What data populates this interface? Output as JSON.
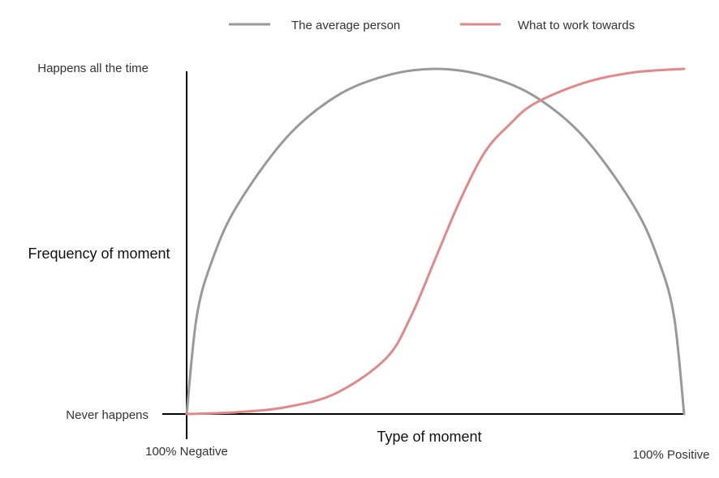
{
  "chart_data": {
    "type": "line",
    "title": "",
    "xlabel": "Type of moment",
    "ylabel": "Frequency of moment",
    "x_tick_labels": [
      "100% Negative",
      "100% Positive"
    ],
    "y_tick_labels": [
      "Never happens",
      "Happens all the time"
    ],
    "xlim": [
      0,
      100
    ],
    "ylim": [
      0,
      100
    ],
    "grid": false,
    "legend_position": "top",
    "series": [
      {
        "name": "The average person",
        "color": "#999999",
        "x": [
          0,
          2,
          5,
          10,
          20,
          30,
          40,
          50,
          60,
          70,
          80,
          90,
          95,
          98,
          100
        ],
        "y": [
          0,
          28,
          44,
          60,
          80,
          92,
          98,
          100,
          98,
          92,
          80,
          60,
          44,
          28,
          0
        ]
      },
      {
        "name": "What to work towards",
        "color": "#e38888",
        "x": [
          0,
          10,
          20,
          30,
          40,
          45,
          50,
          55,
          60,
          65,
          70,
          80,
          90,
          100
        ],
        "y": [
          0,
          0.5,
          2,
          6,
          16,
          28,
          45,
          62,
          76,
          84,
          90,
          96,
          99,
          100
        ]
      }
    ]
  }
}
